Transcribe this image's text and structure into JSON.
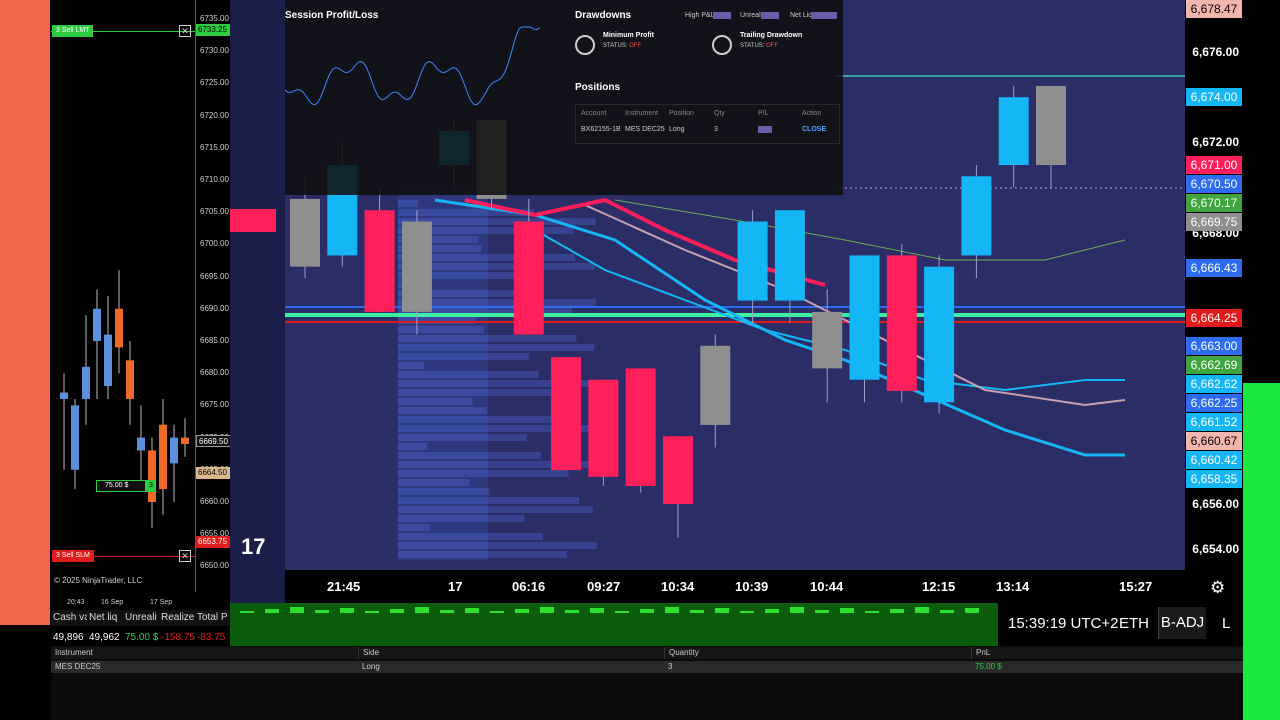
{
  "ninja": {
    "price_ticks": [
      "6735.00",
      "6730.00",
      "6725.00",
      "6720.00",
      "6715.00",
      "6710.00",
      "6705.00",
      "6700.00",
      "6695.00",
      "6690.00",
      "6685.00",
      "6680.00",
      "6675.00",
      "6670.00",
      "6665.00",
      "6660.00",
      "6655.00",
      "6650.00"
    ],
    "sell_lmt": {
      "label": "3  Sell LMT",
      "price": "6733.25",
      "color": "#2ecc40"
    },
    "sell_slm": {
      "label": "3  Sell SLM",
      "price": "6653.75",
      "color": "#e01b1b"
    },
    "last_price": "6669.50",
    "entry_price": "6664.50",
    "position_tag": {
      "pnl": "75.00 $",
      "qty": "3"
    },
    "copyright": "© 2025 NinjaTrader, LLC",
    "x_labels": [
      "20:43",
      "16 Sep",
      "17 Sep"
    ],
    "account_headers": [
      "Cash va",
      "Net liq",
      "Unreali",
      "Realize",
      "Total P"
    ],
    "account_values": [
      {
        "text": "49,896",
        "color": "#ffffff"
      },
      {
        "text": "49,962",
        "color": "#ffffff"
      },
      {
        "text": "75.00 $",
        "color": "#2ecc40"
      },
      {
        "text": "-158.75",
        "color": "#e01b1b"
      },
      {
        "text": "-83.75",
        "color": "#e01b1b"
      }
    ]
  },
  "positions_table": {
    "headers": [
      "Instrument",
      "Side",
      "Quantity",
      "PnL"
    ],
    "row": [
      "MES DEC25",
      "Long",
      "3",
      "75.00 $"
    ],
    "pnl_color": "#2ecc40"
  },
  "overlay": {
    "session_title": "Session Profit/Loss",
    "drawdowns_title": "Drawdowns",
    "high_pnl_label": "High P&L:",
    "unreal_label": "Unreal:",
    "net_liq_label": "Net Liq:",
    "min_profit": {
      "label": "Minimum Profit",
      "status_label": "STATUS:",
      "status": "OFF"
    },
    "trailing": {
      "label": "Trailing Drawdown",
      "status_label": "STATUS:",
      "status": "OFF"
    },
    "positions_title": "Positions",
    "headers": [
      "Account",
      "Instrument",
      "Position",
      "Qty",
      "P/L",
      "Action"
    ],
    "row": {
      "account": "BX62155-1B",
      "instrument": "MES DEC25",
      "position": "Long",
      "qty": "3",
      "action": "CLOSE"
    }
  },
  "tv": {
    "price_ticks": [
      {
        "price": 6676.0,
        "text": "6,676.00"
      },
      {
        "price": 6672.0,
        "text": "6,672.00"
      },
      {
        "price": 6668.0,
        "text": "6,668.00"
      },
      {
        "price": 6656.0,
        "text": "6,656.00"
      },
      {
        "price": 6654.0,
        "text": "6,654.00"
      }
    ],
    "price_flags": [
      {
        "price": 6678.47,
        "text": "6,678.47",
        "bg": "#f3b6ad",
        "fg": "#000000"
      },
      {
        "price": 6674.0,
        "text": "6,674.00",
        "bg": "#15b6f5",
        "fg": "#ffffff"
      },
      {
        "price": 6671.0,
        "text": "6,671.00",
        "bg": "#ff1f5a",
        "fg": "#ffffff"
      },
      {
        "price": 6670.5,
        "text": "6,670.50",
        "bg": "#2d6cf0",
        "fg": "#ffffff"
      },
      {
        "price": 6670.17,
        "text": "6,670.17",
        "bg": "#3fa63f",
        "fg": "#ffffff"
      },
      {
        "price": 6669.75,
        "text": "6,669.75",
        "bg": "#8f8f8f",
        "fg": "#ffffff"
      },
      {
        "price": 6666.43,
        "text": "6,666.43",
        "bg": "#2d6cf0",
        "fg": "#ffffff"
      },
      {
        "price": 6664.25,
        "text": "6,664.25",
        "bg": "#e01b1b",
        "fg": "#ffffff"
      },
      {
        "price": 6663.0,
        "text": "6,663.00",
        "bg": "#2d6cf0",
        "fg": "#ffffff"
      },
      {
        "price": 6662.69,
        "text": "6,662.69",
        "bg": "#3fa63f",
        "fg": "#ffffff"
      },
      {
        "price": 6662.62,
        "text": "6,662.62",
        "bg": "#15b6f5",
        "fg": "#ffffff"
      },
      {
        "price": 6662.25,
        "text": "6,662.25",
        "bg": "#2d6cf0",
        "fg": "#ffffff"
      },
      {
        "price": 6661.52,
        "text": "6,661.52",
        "bg": "#15b6f5",
        "fg": "#ffffff"
      },
      {
        "price": 6660.67,
        "text": "6,660.67",
        "bg": "#f3b6ad",
        "fg": "#000000"
      },
      {
        "price": 6660.42,
        "text": "6,660.42",
        "bg": "#15b6f5",
        "fg": "#ffffff"
      },
      {
        "price": 6658.35,
        "text": "6,658.35",
        "bg": "#15b6f5",
        "fg": "#ffffff"
      }
    ],
    "time_labels": [
      "21:45",
      "17",
      "06:16",
      "09:27",
      "10:34",
      "10:39",
      "10:44",
      "12:15",
      "13:14",
      "15:27"
    ],
    "candles": [
      {
        "o": 6669.5,
        "h": 6670.5,
        "l": 6666.0,
        "c": 6666.5
      },
      {
        "o": 6667.0,
        "h": 6672.0,
        "l": 6666.5,
        "c": 6671.0
      },
      {
        "o": 6669.0,
        "h": 6670.0,
        "l": 6664.5,
        "c": 6664.5
      },
      {
        "o": 6664.5,
        "h": 6669.0,
        "l": 6663.5,
        "c": 6668.5
      },
      {
        "o": 6671.0,
        "h": 6673.0,
        "l": 6670.0,
        "c": 6672.5
      },
      {
        "o": 6669.5,
        "h": 6673.0,
        "l": 6669.0,
        "c": 6673.0
      },
      {
        "o": 6668.5,
        "h": 6669.5,
        "l": 6663.5,
        "c": 6663.5
      },
      {
        "o": 6662.5,
        "h": 6662.5,
        "l": 6657.5,
        "c": 6657.5
      },
      {
        "o": 6661.5,
        "h": 6661.5,
        "l": 6656.8,
        "c": 6657.2
      },
      {
        "o": 6662.0,
        "h": 6662.0,
        "l": 6656.5,
        "c": 6656.8
      },
      {
        "o": 6659.0,
        "h": 6659.0,
        "l": 6654.5,
        "c": 6656.0
      },
      {
        "o": 6659.5,
        "h": 6663.5,
        "l": 6658.5,
        "c": 6663.0
      },
      {
        "o": 6665.0,
        "h": 6669.0,
        "l": 6664.0,
        "c": 6668.5
      },
      {
        "o": 6665.0,
        "h": 6669.0,
        "l": 6664.0,
        "c": 6669.0
      },
      {
        "o": 6662.0,
        "h": 6665.5,
        "l": 6660.5,
        "c": 6664.5
      },
      {
        "o": 6661.5,
        "h": 6667.0,
        "l": 6660.5,
        "c": 6667.0
      },
      {
        "o": 6667.0,
        "h": 6667.5,
        "l": 6660.5,
        "c": 6661.0
      },
      {
        "o": 6660.5,
        "h": 6667.0,
        "l": 6660.0,
        "c": 6666.5
      },
      {
        "o": 6667.0,
        "h": 6671.0,
        "l": 6666.0,
        "c": 6670.5
      },
      {
        "o": 6671.0,
        "h": 6674.5,
        "l": 6670.0,
        "c": 6674.0
      },
      {
        "o": 6674.5,
        "h": 6674.5,
        "l": 6670.0,
        "c": 6671.0
      }
    ],
    "bull_color": "#15b6f5",
    "bear_color": "#ff1f5a",
    "neutral_color": "#8f8f8f",
    "status_time": "15:39:19 UTC+2",
    "session": "ETH",
    "adjustment": "B-ADJ",
    "extra_glyph": "L"
  }
}
